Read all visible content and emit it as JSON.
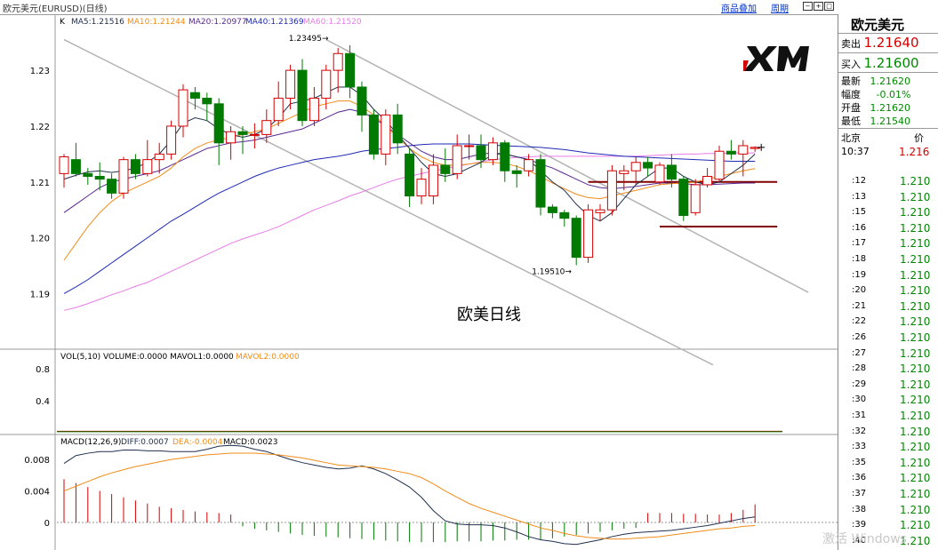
{
  "header": {
    "title": "欧元美元(EURUSD)(日线)",
    "link_overlay": "商品叠加",
    "link_period": "周期"
  },
  "indicators": {
    "k_label": "K",
    "ma5": "MA5:1.21516",
    "ma10": "MA10:1.21244",
    "ma20": "MA20:1.20977",
    "ma40": "MA40:1.21369",
    "ma60": "MA60:1.21520",
    "vol_title": "VOL(5,10) VOLUME:0.0000 MAVOL1:0.0000",
    "mavol2": "MAVOL2:0.0000",
    "macd_title": "MACD(12,26,9)",
    "macd_diff": "DIFF:0.0007",
    "macd_dea": "DEA:-0.0004",
    "macd_val": "MACD:0.0023"
  },
  "annotation": "欧美日线",
  "quote": {
    "name": "欧元美元",
    "sell_label": "卖出",
    "sell": "1.21640",
    "buy_label": "买入",
    "buy": "1.21600",
    "latest_label": "最新",
    "latest": "1.21620",
    "change_label": "幅度",
    "change": "-0.01%",
    "open_label": "开盘",
    "open": "1.21620",
    "low_label": "最低",
    "low": "1.21540",
    "city": "北京",
    "col2": "价",
    "time": "10:37",
    "time_price": "1.216",
    "ticks": [
      ":12",
      ":13",
      ":15",
      ":16",
      ":17",
      ":18",
      ":19",
      ":20",
      ":21",
      ":22",
      ":26",
      ":27",
      ":28",
      ":29",
      ":30",
      ":31",
      ":32",
      ":33",
      ":35",
      ":36",
      ":37",
      ":38",
      ":39",
      ":40"
    ],
    "tick_price": "1.210"
  },
  "watermark": "激活 Windows",
  "colors": {
    "up": "#d40000",
    "down": "#007a00",
    "ma5": "#20304f",
    "ma10": "#f08c1a",
    "ma20": "#5a2890",
    "ma40": "#1e2ab4",
    "ma60": "#e87ce8"
  },
  "chart_data": {
    "type": "candlestick",
    "title": "欧元美元(EURUSD)(日线)",
    "ylim": [
      1.181,
      1.2375
    ],
    "yticks": [
      1.19,
      1.2,
      1.21,
      1.22,
      1.23
    ],
    "high_label": "1.23495",
    "low_label": "1.19510",
    "candles": [
      [
        1.2115,
        1.2145,
        1.209,
        1.215
      ],
      [
        1.214,
        1.2115,
        1.211,
        1.217
      ],
      [
        1.2115,
        1.211,
        1.2095,
        1.2125
      ],
      [
        1.211,
        1.2105,
        1.2085,
        1.2135
      ],
      [
        1.2105,
        1.208,
        1.207,
        1.2115
      ],
      [
        1.208,
        1.214,
        1.207,
        1.2145
      ],
      [
        1.214,
        1.2115,
        1.2105,
        1.215
      ],
      [
        1.2115,
        1.214,
        1.211,
        1.2175
      ],
      [
        1.214,
        1.215,
        1.2115,
        1.217
      ],
      [
        1.215,
        1.22,
        1.214,
        1.221
      ],
      [
        1.22,
        1.2265,
        1.218,
        1.2275
      ],
      [
        1.226,
        1.225,
        1.223,
        1.227
      ],
      [
        1.225,
        1.224,
        1.221,
        1.226
      ],
      [
        1.224,
        1.217,
        1.213,
        1.225
      ],
      [
        1.217,
        1.219,
        1.214,
        1.22
      ],
      [
        1.219,
        1.2185,
        1.215,
        1.22
      ],
      [
        1.2185,
        1.2185,
        1.216,
        1.2205
      ],
      [
        1.2185,
        1.221,
        1.217,
        1.223
      ],
      [
        1.221,
        1.225,
        1.22,
        1.228
      ],
      [
        1.225,
        1.23,
        1.223,
        1.231
      ],
      [
        1.23,
        1.221,
        1.22,
        1.232
      ],
      [
        1.221,
        1.225,
        1.22,
        1.227
      ],
      [
        1.225,
        1.23,
        1.223,
        1.231
      ],
      [
        1.23,
        1.233,
        1.226,
        1.234
      ],
      [
        1.233,
        1.227,
        1.225,
        1.2345
      ],
      [
        1.227,
        1.222,
        1.219,
        1.228
      ],
      [
        1.222,
        1.215,
        1.214,
        1.223
      ],
      [
        1.215,
        1.222,
        1.213,
        1.223
      ],
      [
        1.222,
        1.217,
        1.215,
        1.224
      ],
      [
        1.215,
        1.2075,
        1.2055,
        1.216
      ],
      [
        1.2075,
        1.2105,
        1.206,
        1.2125
      ],
      [
        1.2075,
        1.213,
        1.206,
        1.215
      ],
      [
        1.213,
        1.2115,
        1.21,
        1.216
      ],
      [
        1.2115,
        1.2165,
        1.2105,
        1.2185
      ],
      [
        1.2165,
        1.2165,
        1.214,
        1.2185
      ],
      [
        1.2165,
        1.214,
        1.2125,
        1.2185
      ],
      [
        1.214,
        1.217,
        1.213,
        1.218
      ],
      [
        1.217,
        1.212,
        1.21,
        1.2175
      ],
      [
        1.212,
        1.2115,
        1.209,
        1.213
      ],
      [
        1.212,
        1.214,
        1.211,
        1.215
      ],
      [
        1.214,
        1.2055,
        1.204,
        1.215
      ],
      [
        1.2055,
        1.2045,
        1.2035,
        1.206
      ],
      [
        1.2045,
        1.2035,
        1.202,
        1.205
      ],
      [
        1.2035,
        1.1965,
        1.1951,
        1.204
      ],
      [
        1.1965,
        1.205,
        1.1955,
        1.206
      ],
      [
        1.2045,
        1.205,
        1.203,
        1.206
      ],
      [
        1.205,
        1.212,
        1.204,
        1.213
      ],
      [
        1.2115,
        1.212,
        1.2085,
        1.213
      ],
      [
        1.212,
        1.2135,
        1.2095,
        1.2145
      ],
      [
        1.2135,
        1.2125,
        1.211,
        1.2145
      ],
      [
        1.21,
        1.213,
        1.2095,
        1.2135
      ],
      [
        1.213,
        1.2105,
        1.209,
        1.215
      ],
      [
        1.2105,
        1.204,
        1.203,
        1.211
      ],
      [
        1.2045,
        1.2095,
        1.204,
        1.2105
      ],
      [
        1.2095,
        1.211,
        1.209,
        1.2125
      ],
      [
        1.2105,
        1.2155,
        1.21,
        1.2165
      ],
      [
        1.2155,
        1.215,
        1.214,
        1.2175
      ],
      [
        1.215,
        1.2165,
        1.211,
        1.2175
      ],
      [
        1.216,
        1.2162,
        1.2154,
        1.2164
      ]
    ],
    "ma5": [
      1.2105,
      1.2112,
      1.2118,
      1.212,
      1.2117,
      1.212,
      1.2125,
      1.2135,
      1.215,
      1.2175,
      1.2205,
      1.2215,
      1.221,
      1.2195,
      1.2185,
      1.218,
      1.2185,
      1.2195,
      1.2215,
      1.224,
      1.2245,
      1.225,
      1.226,
      1.227,
      1.227,
      1.2255,
      1.223,
      1.221,
      1.2185,
      1.216,
      1.2135,
      1.2115,
      1.211,
      1.2115,
      1.2125,
      1.2135,
      1.215,
      1.215,
      1.2145,
      1.214,
      1.212,
      1.21,
      1.2085,
      1.206,
      1.204,
      1.203,
      1.2045,
      1.207,
      1.2095,
      1.211,
      1.2125,
      1.2125,
      1.211,
      1.21,
      1.2095,
      1.21,
      1.2115,
      1.213,
      1.215
    ],
    "ma10": [
      1.196,
      1.199,
      1.202,
      1.2045,
      1.2065,
      1.208,
      1.209,
      1.21,
      1.211,
      1.2125,
      1.2145,
      1.216,
      1.217,
      1.2175,
      1.218,
      1.2185,
      1.219,
      1.2195,
      1.2205,
      1.2215,
      1.2225,
      1.2235,
      1.224,
      1.2245,
      1.2245,
      1.2235,
      1.222,
      1.22,
      1.218,
      1.216,
      1.2145,
      1.2135,
      1.213,
      1.213,
      1.2132,
      1.2135,
      1.2135,
      1.2133,
      1.2128,
      1.212,
      1.211,
      1.2098,
      1.2088,
      1.2078,
      1.2072,
      1.207,
      1.2075,
      1.208,
      1.2085,
      1.209,
      1.2095,
      1.2097,
      1.2098,
      1.21,
      1.2105,
      1.211,
      1.2115,
      1.212,
      1.2124
    ],
    "ma20": [
      1.2045,
      1.206,
      1.2075,
      1.209,
      1.21,
      1.2105,
      1.211,
      1.2115,
      1.212,
      1.213,
      1.214,
      1.215,
      1.216,
      1.2165,
      1.217,
      1.2172,
      1.2175,
      1.218,
      1.2185,
      1.219,
      1.2195,
      1.2205,
      1.2215,
      1.2225,
      1.223,
      1.2225,
      1.2215,
      1.22,
      1.2185,
      1.217,
      1.2155,
      1.2145,
      1.214,
      1.214,
      1.2145,
      1.215,
      1.2152,
      1.215,
      1.2145,
      1.214,
      1.2132,
      1.2125,
      1.2115,
      1.2105,
      1.2095,
      1.209,
      1.2088,
      1.209,
      1.2092,
      1.2095,
      1.2098,
      1.2098,
      1.2097,
      1.2095,
      1.2095,
      1.2096,
      1.2097,
      1.2098,
      1.2098
    ],
    "ma40": [
      1.19,
      1.1912,
      1.1925,
      1.194,
      1.1955,
      1.197,
      1.1985,
      1.2,
      1.2015,
      1.203,
      1.2042,
      1.2055,
      1.2068,
      1.208,
      1.209,
      1.21,
      1.211,
      1.2118,
      1.2125,
      1.213,
      1.2135,
      1.214,
      1.2143,
      1.2146,
      1.215,
      1.2155,
      1.2158,
      1.216,
      1.2162,
      1.2165,
      1.2167,
      1.2168,
      1.2168,
      1.2168,
      1.2168,
      1.2167,
      1.2166,
      1.2165,
      1.2164,
      1.2163,
      1.2162,
      1.216,
      1.2158,
      1.2155,
      1.2152,
      1.215,
      1.2148,
      1.2146,
      1.2145,
      1.2144,
      1.2143,
      1.2142,
      1.2141,
      1.214,
      1.2139,
      1.2138,
      1.2137,
      1.2137,
      1.2137
    ],
    "ma60": [
      1.187,
      1.1875,
      1.1882,
      1.189,
      1.1898,
      1.1905,
      1.1913,
      1.192,
      1.193,
      1.194,
      1.195,
      1.196,
      1.197,
      1.198,
      1.199,
      1.1998,
      1.2005,
      1.2012,
      1.202,
      1.203,
      1.204,
      1.205,
      1.2058,
      1.2066,
      1.2075,
      1.2082,
      1.209,
      1.2098,
      1.2105,
      1.211,
      1.2115,
      1.212,
      1.2124,
      1.2128,
      1.2132,
      1.2136,
      1.214,
      1.2142,
      1.2144,
      1.2145,
      1.2146,
      1.2146,
      1.2146,
      1.2146,
      1.2146,
      1.2146,
      1.2146,
      1.2146,
      1.2146,
      1.2147,
      1.2148,
      1.2149,
      1.215,
      1.215,
      1.2151,
      1.2151,
      1.2152,
      1.2152,
      1.2152
    ],
    "trendlines": [
      {
        "from": [
          0,
          1.2355
        ],
        "to": [
          50,
          1.182
        ]
      },
      {
        "from": [
          22,
          1.2355
        ],
        "to": [
          58,
          1.195
        ]
      },
      {
        "from": [
          44,
          1.21
        ],
        "to": [
          58,
          1.21
        ]
      },
      {
        "from": [
          50,
          1.202
        ],
        "to": [
          58,
          1.202
        ]
      }
    ],
    "volume": {
      "ylim": [
        0,
        1.0
      ],
      "yticks": [
        0.4,
        0.8
      ]
    },
    "macd": {
      "ylim": [
        -0.0035,
        0.0105
      ],
      "yticks": [
        0,
        0.004,
        0.008
      ],
      "diff": [
        0.0075,
        0.0085,
        0.0088,
        0.009,
        0.009,
        0.0092,
        0.0092,
        0.0091,
        0.0091,
        0.009,
        0.009,
        0.009,
        0.0093,
        0.0097,
        0.0098,
        0.0097,
        0.0093,
        0.009,
        0.0085,
        0.008,
        0.0076,
        0.0073,
        0.007,
        0.0068,
        0.0069,
        0.0072,
        0.0068,
        0.0062,
        0.0054,
        0.0045,
        0.0032,
        0.0015,
        0.0002,
        -0.0002,
        -0.0003,
        -0.0003,
        -0.0004,
        -0.0007,
        -0.0012,
        -0.0018,
        -0.0022,
        -0.0024,
        -0.0027,
        -0.0028,
        -0.0025,
        -0.0022,
        -0.0018,
        -0.0015,
        -0.0013,
        -0.0012,
        -0.0011,
        -0.001,
        -0.0008,
        -0.0006,
        -0.0004,
        -0.0001,
        0.0002,
        0.0005,
        0.0007
      ],
      "dea": [
        0.004,
        0.0046,
        0.0052,
        0.0058,
        0.0063,
        0.0067,
        0.0071,
        0.0074,
        0.0077,
        0.008,
        0.0082,
        0.0084,
        0.0086,
        0.0087,
        0.0088,
        0.0088,
        0.0088,
        0.0087,
        0.0086,
        0.0084,
        0.0082,
        0.0079,
        0.0076,
        0.0073,
        0.0072,
        0.0071,
        0.007,
        0.0068,
        0.0065,
        0.0062,
        0.0057,
        0.0049,
        0.004,
        0.0032,
        0.0024,
        0.0018,
        0.0013,
        0.0008,
        0.0003,
        -0.0002,
        -0.0007,
        -0.001,
        -0.0014,
        -0.0017,
        -0.0019,
        -0.002,
        -0.0021,
        -0.0021,
        -0.002,
        -0.0019,
        -0.0018,
        -0.0016,
        -0.0014,
        -0.0012,
        -0.001,
        -0.0008,
        -0.0007,
        -0.0005,
        -0.0004
      ],
      "hist": [
        0.0055,
        0.005,
        0.0045,
        0.004,
        0.0036,
        0.0032,
        0.0028,
        0.0024,
        0.002,
        0.0018,
        0.0016,
        0.0014,
        0.0013,
        0.0012,
        0.001,
        -0.0005,
        -0.0008,
        -0.001,
        -0.0012,
        -0.0014,
        -0.0016,
        -0.0017,
        -0.0018,
        -0.0019,
        -0.002,
        -0.0021,
        -0.0022,
        -0.0023,
        -0.0024,
        -0.0025,
        -0.0025,
        -0.0025,
        -0.0025,
        -0.0024,
        -0.0024,
        -0.0024,
        -0.0023,
        -0.0023,
        -0.0022,
        -0.0022,
        -0.0022,
        -0.002,
        -0.0018,
        -0.0016,
        -0.0014,
        -0.0012,
        -0.001,
        -0.0008,
        -0.0007,
        0.0012,
        0.0012,
        0.0012,
        0.0011,
        0.0011,
        0.001,
        0.001,
        0.0012,
        0.0016,
        0.0023
      ]
    }
  }
}
